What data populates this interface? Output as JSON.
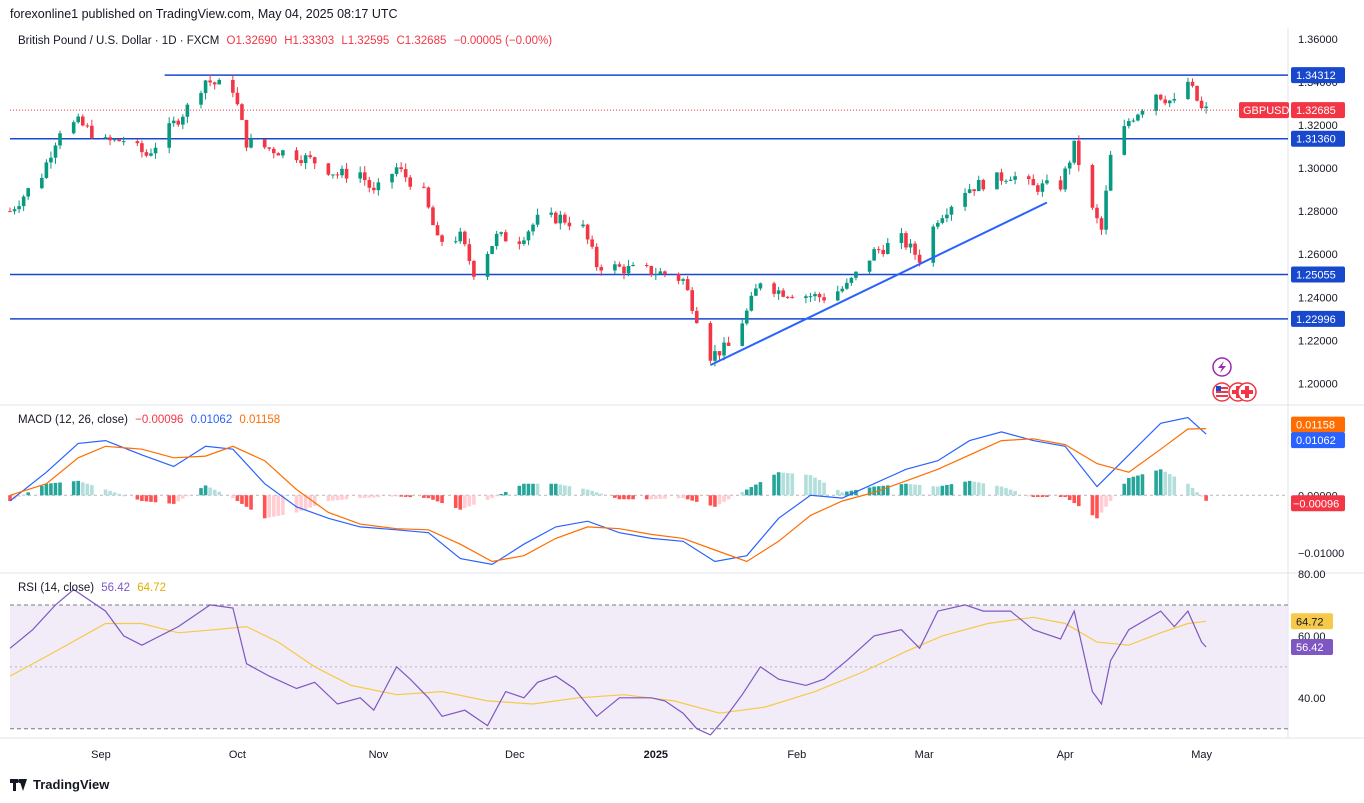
{
  "header": {
    "publisher_line": "forexonline1 published on TradingView.com, May 04, 2025 08:17 UTC"
  },
  "footer": {
    "brand": "TradingView"
  },
  "legend": {
    "title": "British Pound / U.S. Dollar · 1D · FXCM",
    "open": "O1.32690",
    "high": "H1.33303",
    "low": "L1.32595",
    "close": "C1.32685",
    "change": "−0.00005 (−0.00%)",
    "macd_title": "MACD (12, 26, close)",
    "macd_hist": "−0.00096",
    "macd_line": "0.01062",
    "macd_signal": "0.01158",
    "rsi_title": "RSI (14, close)",
    "rsi_value": "56.42",
    "rsi_ma": "64.72"
  },
  "colors": {
    "up": "#089981",
    "down": "#f23645",
    "level_line": "#1848cc",
    "trendline": "#2962ff",
    "macd_line": "#2962ff",
    "macd_signal": "#ff6d00",
    "rsi_line": "#7e57c2",
    "rsi_ma": "#f7c948",
    "rsi_band": "#ede7f6"
  },
  "icons": [
    "lightning-event-icon",
    "us-flag-icon",
    "uk-flag-icon"
  ],
  "chart_data": [
    {
      "type": "candlestick",
      "symbol": "GBPUSD",
      "ylim": [
        1.19,
        1.365
      ],
      "yticks": [
        "1.36000",
        "1.34000",
        "1.32000",
        "1.30000",
        "1.28000",
        "1.26000",
        "1.24000",
        "1.22000",
        "1.20000"
      ],
      "yticks_values": [
        1.36,
        1.34,
        1.32,
        1.3,
        1.28,
        1.26,
        1.24,
        1.22,
        1.2
      ],
      "x_labels": [
        {
          "label": "Sep",
          "date": "2024-09-01"
        },
        {
          "label": "Oct",
          "date": "2024-10-01"
        },
        {
          "label": "Nov",
          "date": "2024-11-01"
        },
        {
          "label": "Dec",
          "date": "2024-12-01"
        },
        {
          "label": "2025",
          "date": "2025-01-01",
          "bold": true
        },
        {
          "label": "Feb",
          "date": "2025-02-01"
        },
        {
          "label": "Mar",
          "date": "2025-03-01"
        },
        {
          "label": "Apr",
          "date": "2025-04-01"
        },
        {
          "label": "May",
          "date": "2025-05-01"
        }
      ],
      "x_range": [
        "2024-08-12",
        "2025-05-20"
      ],
      "last_price": {
        "label": "GBPUSD",
        "value": 1.32685,
        "text": "1.32685"
      },
      "horizontal_levels": [
        {
          "value": 1.34312,
          "label": "1.34312",
          "start": "2024-09-15"
        },
        {
          "value": 1.3136,
          "label": "1.31360",
          "start": "2024-08-12"
        },
        {
          "value": 1.25055,
          "label": "1.25055",
          "start": "2024-08-12"
        },
        {
          "value": 1.22996,
          "label": "1.22996",
          "start": "2024-08-12"
        }
      ],
      "trendline": {
        "from": {
          "date": "2025-01-13",
          "value": 1.2085
        },
        "to": {
          "date": "2025-03-28",
          "value": 1.284
        }
      },
      "close_path": [
        [
          "2024-08-12",
          1.28
        ],
        [
          "2024-08-19",
          1.297
        ],
        [
          "2024-08-23",
          1.318
        ],
        [
          "2024-08-27",
          1.321
        ],
        [
          "2024-09-02",
          1.312
        ],
        [
          "2024-09-06",
          1.313
        ],
        [
          "2024-09-11",
          1.306
        ],
        [
          "2024-09-16",
          1.318
        ],
        [
          "2024-09-20",
          1.328
        ],
        [
          "2024-09-24",
          1.341
        ],
        [
          "2024-09-26",
          1.339
        ],
        [
          "2024-09-30",
          1.337
        ],
        [
          "2024-10-03",
          1.312
        ],
        [
          "2024-10-08",
          1.309
        ],
        [
          "2024-10-14",
          1.306
        ],
        [
          "2024-10-18",
          1.303
        ],
        [
          "2024-10-23",
          1.297
        ],
        [
          "2024-10-28",
          1.298
        ],
        [
          "2024-10-31",
          1.288
        ],
        [
          "2024-11-05",
          1.3
        ],
        [
          "2024-11-11",
          1.288
        ],
        [
          "2024-11-14",
          1.266
        ],
        [
          "2024-11-19",
          1.268
        ],
        [
          "2024-11-22",
          1.252
        ],
        [
          "2024-11-27",
          1.268
        ],
        [
          "2024-12-02",
          1.267
        ],
        [
          "2024-12-06",
          1.276
        ],
        [
          "2024-12-11",
          1.277
        ],
        [
          "2024-12-16",
          1.272
        ],
        [
          "2024-12-19",
          1.255
        ],
        [
          "2024-12-26",
          1.253
        ],
        [
          "2024-12-31",
          1.252
        ],
        [
          "2025-01-03",
          1.251
        ],
        [
          "2025-01-07",
          1.248
        ],
        [
          "2025-01-10",
          1.231
        ],
        [
          "2025-01-13",
          1.213
        ],
        [
          "2025-01-17",
          1.217
        ],
        [
          "2025-01-21",
          1.233
        ],
        [
          "2025-01-24",
          1.248
        ],
        [
          "2025-01-28",
          1.243
        ],
        [
          "2025-02-03",
          1.241
        ],
        [
          "2025-02-07",
          1.24
        ],
        [
          "2025-02-12",
          1.245
        ],
        [
          "2025-02-18",
          1.261
        ],
        [
          "2025-02-24",
          1.267
        ],
        [
          "2025-02-28",
          1.258
        ],
        [
          "2025-03-04",
          1.277
        ],
        [
          "2025-03-10",
          1.29
        ],
        [
          "2025-03-14",
          1.293
        ],
        [
          "2025-03-20",
          1.297
        ],
        [
          "2025-03-25",
          1.291
        ],
        [
          "2025-03-31",
          1.292
        ],
        [
          "2025-04-03",
          1.31
        ],
        [
          "2025-04-07",
          1.28
        ],
        [
          "2025-04-09",
          1.271
        ],
        [
          "2025-04-11",
          1.305
        ],
        [
          "2025-04-15",
          1.322
        ],
        [
          "2025-04-21",
          1.335
        ],
        [
          "2025-04-25",
          1.33
        ],
        [
          "2025-04-28",
          1.34
        ],
        [
          "2025-05-01",
          1.327
        ],
        [
          "2025-05-02",
          1.3268
        ]
      ]
    },
    {
      "type": "line",
      "name": "MACD",
      "ylim": [
        -0.0135,
        0.0155
      ],
      "yticks": [
        "0.00000",
        "−0.01000"
      ],
      "yticks_values": [
        0,
        -0.01
      ],
      "labels": {
        "signal": "0.01158",
        "macd": "0.01062",
        "hist": "−0.00096"
      },
      "macd": [
        [
          "2024-08-12",
          -0.001
        ],
        [
          "2024-08-20",
          0.004
        ],
        [
          "2024-08-27",
          0.009
        ],
        [
          "2024-09-02",
          0.0095
        ],
        [
          "2024-09-10",
          0.007
        ],
        [
          "2024-09-17",
          0.005
        ],
        [
          "2024-09-24",
          0.0085
        ],
        [
          "2024-09-30",
          0.008
        ],
        [
          "2024-10-07",
          0.002
        ],
        [
          "2024-10-14",
          -0.002
        ],
        [
          "2024-10-21",
          -0.004
        ],
        [
          "2024-10-28",
          -0.0055
        ],
        [
          "2024-11-05",
          -0.006
        ],
        [
          "2024-11-12",
          -0.0065
        ],
        [
          "2024-11-19",
          -0.011
        ],
        [
          "2024-11-26",
          -0.012
        ],
        [
          "2024-12-03",
          -0.0085
        ],
        [
          "2024-12-10",
          -0.0055
        ],
        [
          "2024-12-17",
          -0.0045
        ],
        [
          "2024-12-24",
          -0.0065
        ],
        [
          "2024-12-31",
          -0.0075
        ],
        [
          "2025-01-07",
          -0.008
        ],
        [
          "2025-01-14",
          -0.0115
        ],
        [
          "2025-01-21",
          -0.0105
        ],
        [
          "2025-01-28",
          -0.004
        ],
        [
          "2025-02-04",
          0.0
        ],
        [
          "2025-02-11",
          -0.0005
        ],
        [
          "2025-02-18",
          0.002
        ],
        [
          "2025-02-25",
          0.0045
        ],
        [
          "2025-03-04",
          0.006
        ],
        [
          "2025-03-11",
          0.0095
        ],
        [
          "2025-03-18",
          0.011
        ],
        [
          "2025-03-25",
          0.0095
        ],
        [
          "2025-04-01",
          0.0085
        ],
        [
          "2025-04-08",
          0.0015
        ],
        [
          "2025-04-15",
          0.007
        ],
        [
          "2025-04-22",
          0.0125
        ],
        [
          "2025-04-28",
          0.0135
        ],
        [
          "2025-05-02",
          0.01062
        ]
      ],
      "signal": [
        [
          "2024-08-12",
          0.0
        ],
        [
          "2024-08-20",
          0.002
        ],
        [
          "2024-08-27",
          0.0065
        ],
        [
          "2024-09-02",
          0.0085
        ],
        [
          "2024-09-10",
          0.008
        ],
        [
          "2024-09-17",
          0.0065
        ],
        [
          "2024-09-24",
          0.0068
        ],
        [
          "2024-09-30",
          0.0085
        ],
        [
          "2024-10-07",
          0.006
        ],
        [
          "2024-10-14",
          0.001
        ],
        [
          "2024-10-21",
          -0.003
        ],
        [
          "2024-10-28",
          -0.005
        ],
        [
          "2024-11-05",
          -0.0058
        ],
        [
          "2024-11-12",
          -0.006
        ],
        [
          "2024-11-19",
          -0.0085
        ],
        [
          "2024-11-26",
          -0.0115
        ],
        [
          "2024-12-03",
          -0.0105
        ],
        [
          "2024-12-10",
          -0.0075
        ],
        [
          "2024-12-17",
          -0.0055
        ],
        [
          "2024-12-24",
          -0.0058
        ],
        [
          "2024-12-31",
          -0.0068
        ],
        [
          "2025-01-07",
          -0.0075
        ],
        [
          "2025-01-14",
          -0.0095
        ],
        [
          "2025-01-21",
          -0.0115
        ],
        [
          "2025-01-28",
          -0.008
        ],
        [
          "2025-02-04",
          -0.0035
        ],
        [
          "2025-02-11",
          -0.001
        ],
        [
          "2025-02-18",
          0.0005
        ],
        [
          "2025-02-25",
          0.0025
        ],
        [
          "2025-03-04",
          0.0045
        ],
        [
          "2025-03-11",
          0.007
        ],
        [
          "2025-03-18",
          0.0095
        ],
        [
          "2025-03-25",
          0.0098
        ],
        [
          "2025-04-01",
          0.0088
        ],
        [
          "2025-04-08",
          0.0055
        ],
        [
          "2025-04-15",
          0.004
        ],
        [
          "2025-04-22",
          0.008
        ],
        [
          "2025-04-28",
          0.0115
        ],
        [
          "2025-05-02",
          0.01158
        ]
      ]
    },
    {
      "type": "line",
      "name": "RSI",
      "ylim": [
        27,
        80
      ],
      "yticks": [
        "80.00",
        "60.00",
        "40.00"
      ],
      "yticks_values": [
        80,
        60,
        40
      ],
      "band": [
        30,
        70
      ],
      "midline": 50,
      "labels": {
        "ma": "64.72",
        "rsi": "56.42"
      },
      "rsi": [
        [
          "2024-08-12",
          56
        ],
        [
          "2024-08-17",
          62
        ],
        [
          "2024-08-22",
          70
        ],
        [
          "2024-08-26",
          75
        ],
        [
          "2024-09-02",
          68
        ],
        [
          "2024-09-06",
          60
        ],
        [
          "2024-09-10",
          57
        ],
        [
          "2024-09-14",
          60
        ],
        [
          "2024-09-18",
          63
        ],
        [
          "2024-09-22",
          67
        ],
        [
          "2024-09-25",
          70
        ],
        [
          "2024-09-30",
          69
        ],
        [
          "2024-10-03",
          51
        ],
        [
          "2024-10-08",
          47
        ],
        [
          "2024-10-14",
          43
        ],
        [
          "2024-10-18",
          45
        ],
        [
          "2024-10-23",
          38
        ],
        [
          "2024-10-28",
          40
        ],
        [
          "2024-10-31",
          36
        ],
        [
          "2024-11-05",
          50
        ],
        [
          "2024-11-08",
          46
        ],
        [
          "2024-11-12",
          40
        ],
        [
          "2024-11-15",
          34
        ],
        [
          "2024-11-20",
          36
        ],
        [
          "2024-11-25",
          31
        ],
        [
          "2024-11-29",
          42
        ],
        [
          "2024-12-03",
          40
        ],
        [
          "2024-12-06",
          45
        ],
        [
          "2024-12-10",
          47
        ],
        [
          "2024-12-14",
          43
        ],
        [
          "2024-12-19",
          34
        ],
        [
          "2024-12-24",
          40
        ],
        [
          "2024-12-31",
          40
        ],
        [
          "2025-01-03",
          39
        ],
        [
          "2025-01-07",
          35
        ],
        [
          "2025-01-10",
          30
        ],
        [
          "2025-01-13",
          28
        ],
        [
          "2025-01-16",
          33
        ],
        [
          "2025-01-20",
          41
        ],
        [
          "2025-01-24",
          50
        ],
        [
          "2025-01-28",
          46
        ],
        [
          "2025-02-03",
          44
        ],
        [
          "2025-02-07",
          46
        ],
        [
          "2025-02-12",
          52
        ],
        [
          "2025-02-18",
          60
        ],
        [
          "2025-02-24",
          62
        ],
        [
          "2025-02-28",
          56
        ],
        [
          "2025-03-04",
          68
        ],
        [
          "2025-03-10",
          70
        ],
        [
          "2025-03-14",
          68
        ],
        [
          "2025-03-20",
          68
        ],
        [
          "2025-03-25",
          62
        ],
        [
          "2025-03-31",
          59
        ],
        [
          "2025-04-03",
          68
        ],
        [
          "2025-04-07",
          42
        ],
        [
          "2025-04-09",
          38
        ],
        [
          "2025-04-11",
          52
        ],
        [
          "2025-04-15",
          62
        ],
        [
          "2025-04-22",
          68
        ],
        [
          "2025-04-25",
          63
        ],
        [
          "2025-04-28",
          68
        ],
        [
          "2025-05-01",
          58
        ],
        [
          "2025-05-02",
          56.42
        ]
      ],
      "rsi_ma": [
        [
          "2024-08-12",
          47
        ],
        [
          "2024-08-22",
          55
        ],
        [
          "2024-09-02",
          64
        ],
        [
          "2024-09-10",
          64
        ],
        [
          "2024-09-18",
          61
        ],
        [
          "2024-09-26",
          62
        ],
        [
          "2024-10-03",
          63
        ],
        [
          "2024-10-10",
          58
        ],
        [
          "2024-10-18",
          50
        ],
        [
          "2024-10-26",
          44
        ],
        [
          "2024-11-05",
          41
        ],
        [
          "2024-11-15",
          42
        ],
        [
          "2024-11-25",
          39
        ],
        [
          "2024-12-05",
          38
        ],
        [
          "2024-12-15",
          40
        ],
        [
          "2024-12-25",
          41
        ],
        [
          "2025-01-05",
          39
        ],
        [
          "2025-01-15",
          35
        ],
        [
          "2025-01-25",
          37
        ],
        [
          "2025-02-05",
          42
        ],
        [
          "2025-02-15",
          48
        ],
        [
          "2025-02-25",
          55
        ],
        [
          "2025-03-05",
          60
        ],
        [
          "2025-03-15",
          64
        ],
        [
          "2025-03-25",
          66
        ],
        [
          "2025-04-01",
          64
        ],
        [
          "2025-04-08",
          58
        ],
        [
          "2025-04-15",
          57
        ],
        [
          "2025-04-22",
          61
        ],
        [
          "2025-04-28",
          64
        ],
        [
          "2025-05-02",
          64.72
        ]
      ]
    }
  ]
}
